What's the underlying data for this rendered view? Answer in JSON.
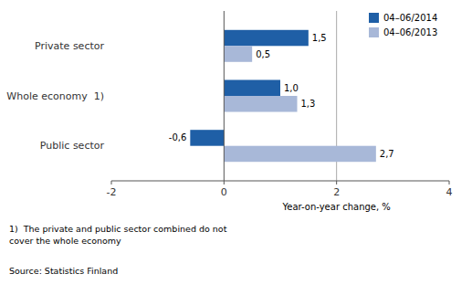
{
  "chart_data": {
    "type": "bar",
    "orientation": "horizontal",
    "categories": [
      "Public sector",
      "Whole economy  1)",
      "Private sector"
    ],
    "series": [
      {
        "name": "04–06/2014",
        "color": "#1F5FA6",
        "values": [
          -0.6,
          1.0,
          1.5
        ],
        "value_labels": [
          "-0,6",
          "1,0",
          "1,5"
        ]
      },
      {
        "name": "04–06/2013",
        "color": "#A8B8D8",
        "values": [
          2.7,
          1.3,
          0.5
        ],
        "value_labels": [
          "2,7",
          "1,3",
          "0,5"
        ]
      }
    ],
    "xlim": [
      -2,
      4
    ],
    "xticks": [
      -2,
      0,
      2,
      4
    ],
    "xlabel": "Year-on-year change, %",
    "reference_lines": [
      2
    ],
    "footnote": "1)  The private and public sector combined do not\ncover the whole economy",
    "source": "Source: Statistics Finland",
    "data_labels": true,
    "legend": "upper right"
  }
}
